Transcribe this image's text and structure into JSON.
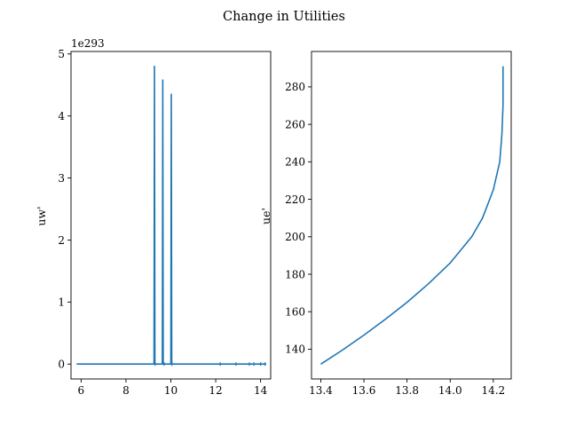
{
  "figure": {
    "suptitle": "Change in Utilities"
  },
  "chart_data": [
    {
      "type": "line",
      "ylabel": "uw'",
      "xlabel": "",
      "offset_text": "1e293",
      "xlim": [
        5.55,
        14.45
      ],
      "ylim": [
        -0.24,
        5.04
      ],
      "xticks": [
        6,
        8,
        10,
        12,
        14
      ],
      "xtick_labels": [
        "6",
        "8",
        "10",
        "12",
        "14"
      ],
      "yticks": [
        0,
        1,
        2,
        3,
        4,
        5
      ],
      "ytick_labels": [
        "0",
        "1",
        "2",
        "3",
        "4",
        "5"
      ],
      "grid": false,
      "series": [
        {
          "color": "#1f77b4",
          "points": [
            [
              5.8,
              0
            ],
            [
              9.25,
              0
            ],
            [
              9.27,
              4.8
            ],
            [
              9.29,
              0
            ],
            [
              9.62,
              0
            ],
            [
              9.64,
              4.58
            ],
            [
              9.66,
              0
            ],
            [
              10.0,
              0
            ],
            [
              10.02,
              4.35
            ],
            [
              10.04,
              0
            ],
            [
              14.25,
              0
            ]
          ],
          "markers_x": [
            9.3,
            9.7,
            10.05,
            12.2,
            12.9,
            13.5,
            13.7,
            14.0,
            14.2
          ]
        }
      ]
    },
    {
      "type": "line",
      "ylabel": "ue'",
      "xlabel": "",
      "xlim": [
        13.357,
        14.283
      ],
      "ylim": [
        124.1,
        298.9
      ],
      "xticks": [
        13.4,
        13.6,
        13.8,
        14.0,
        14.2
      ],
      "xtick_labels": [
        "13.4",
        "13.6",
        "13.8",
        "14.0",
        "14.2"
      ],
      "yticks": [
        140,
        160,
        180,
        200,
        220,
        240,
        260,
        280
      ],
      "ytick_labels": [
        "140",
        "160",
        "180",
        "200",
        "220",
        "240",
        "260",
        "280"
      ],
      "grid": false,
      "series": [
        {
          "color": "#1f77b4",
          "points": [
            [
              13.4,
              132.0
            ],
            [
              13.5,
              139.5
            ],
            [
              13.6,
              147.5
            ],
            [
              13.7,
              156.0
            ],
            [
              13.8,
              165.0
            ],
            [
              13.9,
              175.0
            ],
            [
              14.0,
              186.0
            ],
            [
              14.1,
              200.0
            ],
            [
              14.15,
              210.0
            ],
            [
              14.2,
              225.0
            ],
            [
              14.23,
              240.0
            ],
            [
              14.24,
              255.0
            ],
            [
              14.245,
              270.0
            ],
            [
              14.245,
              291.0
            ]
          ]
        }
      ]
    }
  ]
}
